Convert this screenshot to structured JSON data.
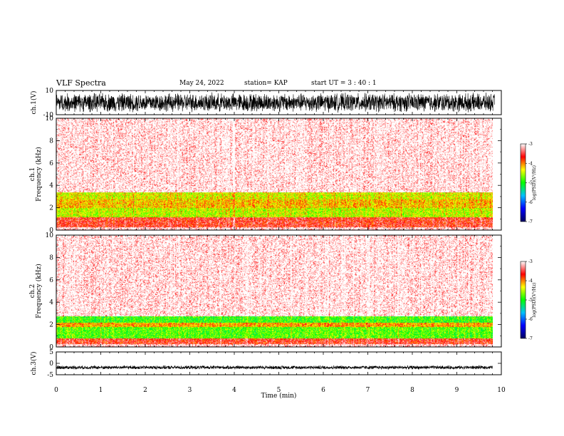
{
  "header": {
    "title": "VLF Spectra",
    "date": "May 24, 2022",
    "station": "station= KAP",
    "start": "start  UT  =   3  : 40 : 1"
  },
  "colorbar": {
    "label": "log(PSD)(V²/Hz)",
    "ticks": [
      "-3",
      "-4",
      "-5",
      "-6",
      "-7"
    ],
    "range": [
      -7,
      -3
    ],
    "colors": [
      "#000060",
      "#0000ff",
      "#00c0ff",
      "#00ff00",
      "#ffff00",
      "#ff0000",
      "#ffffff"
    ]
  },
  "chart_data": [
    {
      "type": "line",
      "name": "waveform-ch1",
      "ylabel": "ch.1(V)",
      "ylim": [
        -10,
        10
      ],
      "yticks": [
        "10",
        "-10"
      ],
      "description_series": "dense noise waveform spanning roughly -8 to 8 V",
      "xlim": [
        0,
        10
      ]
    },
    {
      "type": "heatmap",
      "name": "spectrogram-ch1",
      "ylabel_lines": [
        "ch.1",
        "Frequency (kHz)"
      ],
      "ylim": [
        0,
        10
      ],
      "yticks": [
        "0",
        "2",
        "4",
        "6",
        "8",
        "10"
      ],
      "xlim": [
        0,
        9.8
      ],
      "bands": [
        {
          "fmin": 0.0,
          "fmax": 0.3,
          "level": -3.2
        },
        {
          "fmin": 0.3,
          "fmax": 1.2,
          "level": -3.6
        },
        {
          "fmin": 1.2,
          "fmax": 2.0,
          "level": -4.5
        },
        {
          "fmin": 2.0,
          "fmax": 2.8,
          "level": -4.2
        },
        {
          "fmin": 2.8,
          "fmax": 3.4,
          "level": -4.4
        },
        {
          "fmin": 3.4,
          "fmax": 10.0,
          "level": -3.1
        }
      ]
    },
    {
      "type": "heatmap",
      "name": "spectrogram-ch2",
      "ylabel_lines": [
        "ch.2",
        "Frequency (kHz)"
      ],
      "ylim": [
        0,
        10
      ],
      "yticks": [
        "0",
        "2",
        "4",
        "6",
        "8",
        "10"
      ],
      "xlim": [
        0,
        9.8
      ],
      "bands": [
        {
          "fmin": 0.0,
          "fmax": 0.3,
          "level": -3.2
        },
        {
          "fmin": 0.3,
          "fmax": 0.8,
          "level": -3.6
        },
        {
          "fmin": 0.8,
          "fmax": 1.8,
          "level": -4.8
        },
        {
          "fmin": 1.8,
          "fmax": 2.2,
          "level": -4.1
        },
        {
          "fmin": 2.2,
          "fmax": 2.8,
          "level": -4.9
        },
        {
          "fmin": 2.8,
          "fmax": 10.0,
          "level": -3.1
        }
      ]
    },
    {
      "type": "line",
      "name": "waveform-ch3",
      "ylabel": "ch.3(V)",
      "ylim": [
        -5,
        5
      ],
      "yticks": [
        "5",
        "0",
        "-5"
      ],
      "description_series": "narrow band around -1.8 V",
      "xlim": [
        0,
        9.8
      ]
    }
  ],
  "xaxis": {
    "label": "Time  (min)",
    "ticks": [
      "0",
      "1",
      "2",
      "3",
      "4",
      "5",
      "6",
      "7",
      "8",
      "9",
      "10"
    ],
    "xlim": [
      0,
      10
    ]
  }
}
